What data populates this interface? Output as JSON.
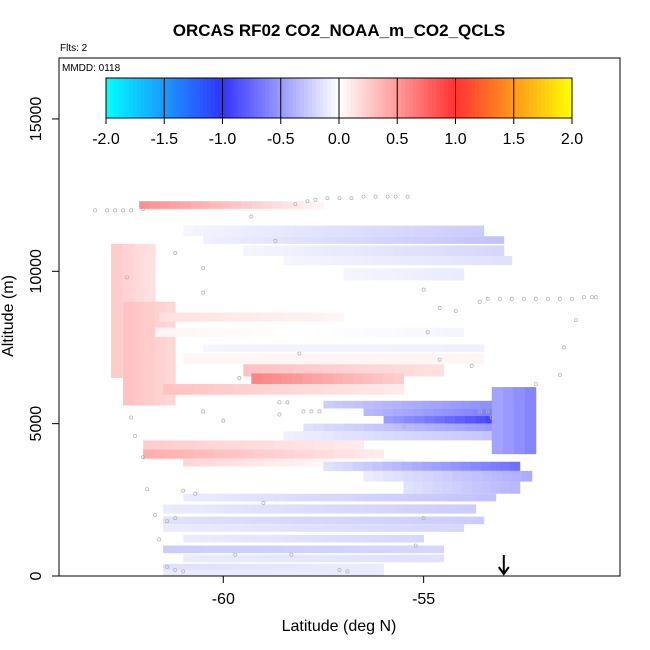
{
  "chart_data": {
    "type": "heatmap",
    "title": "ORCAS RF02 CO2_NOAA_m_CO2_QCLS",
    "subtitle": "Flts: 2",
    "annotation": "MMDD: 0118",
    "xlabel": "Latitude (deg N)",
    "ylabel": "Altitude (m)",
    "xlim": [
      -64.1,
      -50.1
    ],
    "ylim": [
      0,
      17000
    ],
    "xticks": [
      -60,
      -55
    ],
    "xtick_labels": [
      "-60",
      "-55"
    ],
    "yticks": [
      0,
      5000,
      10000,
      15000
    ],
    "ytick_labels": [
      "0",
      "5000",
      "10000",
      "15000"
    ],
    "grid": false,
    "colorbar": {
      "range": [
        -2.0,
        2.0
      ],
      "ticks": [
        -2.0,
        -1.5,
        -1.0,
        -0.5,
        0.0,
        0.5,
        1.0,
        1.5,
        2.0
      ],
      "tick_labels": [
        "-2.0",
        "-1.5",
        "-1.0",
        "-0.5",
        "0.0",
        "0.5",
        "1.0",
        "1.5",
        "2.0"
      ],
      "colors": {
        "-2.0": "#00ffff",
        "-1.0": "#3333ff",
        "0.0": "#ffffff",
        "1.0": "#ff3333",
        "2.0": "#ffff00"
      }
    },
    "arrow_latitude": -53.0,
    "bands": [
      {
        "lat_start": -62.1,
        "lat_end": -57.5,
        "alt_start": 12050,
        "alt_end": 12300,
        "value_start": 0.55,
        "value_end": 0.05
      },
      {
        "lat_start": -61.0,
        "lat_end": -53.5,
        "alt_start": 11150,
        "alt_end": 11500,
        "value_start": -0.05,
        "value_end": -0.25
      },
      {
        "lat_start": -60.5,
        "lat_end": -53.0,
        "alt_start": 10900,
        "alt_end": 11150,
        "value_start": -0.08,
        "value_end": -0.3
      },
      {
        "lat_start": -59.5,
        "lat_end": -53.0,
        "alt_start": 10500,
        "alt_end": 10850,
        "value_start": -0.05,
        "value_end": -0.2
      },
      {
        "lat_start": -58.5,
        "lat_end": -52.8,
        "alt_start": 10200,
        "alt_end": 10500,
        "value_start": -0.05,
        "value_end": -0.15
      },
      {
        "lat_start": -57.0,
        "lat_end": -54.0,
        "alt_start": 9700,
        "alt_end": 10100,
        "value_start": -0.05,
        "value_end": -0.1
      },
      {
        "lat_start": -62.8,
        "lat_end": -61.7,
        "alt_start": 6500,
        "alt_end": 10900,
        "value_start": 0.25,
        "value_end": 0.15
      },
      {
        "lat_start": -62.5,
        "lat_end": -61.2,
        "alt_start": 5600,
        "alt_end": 9000,
        "value_start": 0.3,
        "value_end": 0.2
      },
      {
        "lat_start": -61.6,
        "lat_end": -57.0,
        "alt_start": 8350,
        "alt_end": 8650,
        "value_start": 0.15,
        "value_end": 0.05
      },
      {
        "lat_start": -61.7,
        "lat_end": -54.0,
        "alt_start": 7850,
        "alt_end": 8150,
        "value_start": 0.05,
        "value_end": -0.05
      },
      {
        "lat_start": -60.5,
        "lat_end": -53.5,
        "alt_start": 7350,
        "alt_end": 7600,
        "value_start": -0.05,
        "value_end": -0.08
      },
      {
        "lat_start": -61.0,
        "lat_end": -53.5,
        "alt_start": 6950,
        "alt_end": 7300,
        "value_start": 0.05,
        "value_end": 0.05
      },
      {
        "lat_start": -59.5,
        "lat_end": -54.5,
        "alt_start": 6550,
        "alt_end": 6950,
        "value_start": 0.3,
        "value_end": 0.15
      },
      {
        "lat_start": -59.3,
        "lat_end": -55.5,
        "alt_start": 6300,
        "alt_end": 6650,
        "value_start": 0.6,
        "value_end": 0.25
      },
      {
        "lat_start": -61.5,
        "lat_end": -55.5,
        "alt_start": 5950,
        "alt_end": 6300,
        "value_start": 0.3,
        "value_end": 0.1
      },
      {
        "lat_start": -57.5,
        "lat_end": -52.6,
        "alt_start": 5500,
        "alt_end": 5750,
        "value_start": -0.25,
        "value_end": -0.6
      },
      {
        "lat_start": -56.5,
        "lat_end": -52.5,
        "alt_start": 5250,
        "alt_end": 5500,
        "value_start": -0.35,
        "value_end": -0.7
      },
      {
        "lat_start": -56.0,
        "lat_end": -53.2,
        "alt_start": 5000,
        "alt_end": 5250,
        "value_start": -0.5,
        "value_end": -0.9
      },
      {
        "lat_start": -58.0,
        "lat_end": -53.2,
        "alt_start": 4750,
        "alt_end": 5000,
        "value_start": -0.15,
        "value_end": -0.5
      },
      {
        "lat_start": -58.5,
        "lat_end": -52.8,
        "alt_start": 4450,
        "alt_end": 4750,
        "value_start": -0.08,
        "value_end": -0.3
      },
      {
        "lat_start": -53.3,
        "lat_end": -52.2,
        "alt_start": 4000,
        "alt_end": 6200,
        "value_start": -0.45,
        "value_end": -0.6
      },
      {
        "lat_start": -62.0,
        "lat_end": -56.5,
        "alt_start": 4150,
        "alt_end": 4450,
        "value_start": 0.25,
        "value_end": 0.1
      },
      {
        "lat_start": -62.0,
        "lat_end": -56.0,
        "alt_start": 3850,
        "alt_end": 4150,
        "value_start": 0.4,
        "value_end": 0.1
      },
      {
        "lat_start": -61.0,
        "lat_end": -55.5,
        "alt_start": 3600,
        "alt_end": 3850,
        "value_start": 0.2,
        "value_end": -0.05
      },
      {
        "lat_start": -57.5,
        "lat_end": -52.6,
        "alt_start": 3450,
        "alt_end": 3750,
        "value_start": -0.15,
        "value_end": -0.7
      },
      {
        "lat_start": -56.5,
        "lat_end": -52.3,
        "alt_start": 3100,
        "alt_end": 3450,
        "value_start": -0.1,
        "value_end": -0.4
      },
      {
        "lat_start": -55.5,
        "lat_end": -52.6,
        "alt_start": 2700,
        "alt_end": 3100,
        "value_start": -0.15,
        "value_end": -0.35
      },
      {
        "lat_start": -61.0,
        "lat_end": -53.2,
        "alt_start": 2450,
        "alt_end": 2700,
        "value_start": -0.1,
        "value_end": -0.3
      },
      {
        "lat_start": -61.5,
        "lat_end": -53.7,
        "alt_start": 2050,
        "alt_end": 2350,
        "value_start": -0.1,
        "value_end": -0.25
      },
      {
        "lat_start": -61.5,
        "lat_end": -53.5,
        "alt_start": 1700,
        "alt_end": 1950,
        "value_start": -0.15,
        "value_end": -0.25
      },
      {
        "lat_start": -61.5,
        "lat_end": -54.0,
        "alt_start": 1450,
        "alt_end": 1700,
        "value_start": -0.1,
        "value_end": -0.2
      },
      {
        "lat_start": -61.0,
        "lat_end": -55.0,
        "alt_start": 1100,
        "alt_end": 1350,
        "value_start": -0.1,
        "value_end": -0.2
      },
      {
        "lat_start": -61.5,
        "lat_end": -54.5,
        "alt_start": 750,
        "alt_end": 1000,
        "value_start": -0.25,
        "value_end": -0.2
      },
      {
        "lat_start": -61.0,
        "lat_end": -54.5,
        "alt_start": 450,
        "alt_end": 700,
        "value_start": -0.1,
        "value_end": -0.15
      },
      {
        "lat_start": -61.5,
        "lat_end": -56.0,
        "alt_start": 150,
        "alt_end": 400,
        "value_start": -0.15,
        "value_end": -0.1
      },
      {
        "lat_start": -61.5,
        "lat_end": -56.0,
        "alt_start": 0,
        "alt_end": 200,
        "value_start": -0.1,
        "value_end": -0.1
      }
    ],
    "flight_track": [
      {
        "lat": -63.2,
        "alt": 12000
      },
      {
        "lat": -62.9,
        "alt": 12000
      },
      {
        "lat": -62.7,
        "alt": 12000
      },
      {
        "lat": -62.5,
        "alt": 12000
      },
      {
        "lat": -62.3,
        "alt": 12000
      },
      {
        "lat": -62.0,
        "alt": 12050
      },
      {
        "lat": -58.2,
        "alt": 12200
      },
      {
        "lat": -57.9,
        "alt": 12300
      },
      {
        "lat": -57.7,
        "alt": 12350
      },
      {
        "lat": -57.4,
        "alt": 12400
      },
      {
        "lat": -57.1,
        "alt": 12400
      },
      {
        "lat": -56.8,
        "alt": 12400
      },
      {
        "lat": -56.5,
        "alt": 12450
      },
      {
        "lat": -56.2,
        "alt": 12450
      },
      {
        "lat": -55.9,
        "alt": 12450
      },
      {
        "lat": -55.7,
        "alt": 12450
      },
      {
        "lat": -55.4,
        "alt": 12450
      },
      {
        "lat": -59.3,
        "alt": 11800
      },
      {
        "lat": -58.7,
        "alt": 11000
      },
      {
        "lat": -61.2,
        "alt": 10600
      },
      {
        "lat": -60.5,
        "alt": 10100
      },
      {
        "lat": -62.4,
        "alt": 9800
      },
      {
        "lat": -60.5,
        "alt": 9300
      },
      {
        "lat": -55.0,
        "alt": 9400
      },
      {
        "lat": -54.6,
        "alt": 8800
      },
      {
        "lat": -54.2,
        "alt": 8700
      },
      {
        "lat": -53.6,
        "alt": 9000
      },
      {
        "lat": -53.4,
        "alt": 9100
      },
      {
        "lat": -53.1,
        "alt": 9100
      },
      {
        "lat": -52.8,
        "alt": 9100
      },
      {
        "lat": -52.5,
        "alt": 9100
      },
      {
        "lat": -52.2,
        "alt": 9100
      },
      {
        "lat": -51.9,
        "alt": 9100
      },
      {
        "lat": -51.6,
        "alt": 9100
      },
      {
        "lat": -51.3,
        "alt": 9100
      },
      {
        "lat": -51.0,
        "alt": 9150
      },
      {
        "lat": -50.8,
        "alt": 9150
      },
      {
        "lat": -50.7,
        "alt": 9150
      },
      {
        "lat": -51.2,
        "alt": 8400
      },
      {
        "lat": -54.9,
        "alt": 8000
      },
      {
        "lat": -51.5,
        "alt": 7500
      },
      {
        "lat": -58.1,
        "alt": 7300
      },
      {
        "lat": -54.6,
        "alt": 7100
      },
      {
        "lat": -53.8,
        "alt": 6900
      },
      {
        "lat": -51.6,
        "alt": 6600
      },
      {
        "lat": -59.6,
        "alt": 6500
      },
      {
        "lat": -52.2,
        "alt": 6300
      },
      {
        "lat": -58.6,
        "alt": 5700
      },
      {
        "lat": -58.4,
        "alt": 5700
      },
      {
        "lat": -60.5,
        "alt": 5400
      },
      {
        "lat": -58.6,
        "alt": 5300
      },
      {
        "lat": -58.0,
        "alt": 5400
      },
      {
        "lat": -57.8,
        "alt": 5400
      },
      {
        "lat": -57.6,
        "alt": 5400
      },
      {
        "lat": -53.6,
        "alt": 5400
      },
      {
        "lat": -53.4,
        "alt": 5400
      },
      {
        "lat": -53.3,
        "alt": 5200
      },
      {
        "lat": -60.0,
        "alt": 5100
      },
      {
        "lat": -62.3,
        "alt": 5200
      },
      {
        "lat": -55.5,
        "alt": 4900
      },
      {
        "lat": -62.2,
        "alt": 4600
      },
      {
        "lat": -62.0,
        "alt": 3900
      },
      {
        "lat": -61.9,
        "alt": 2850
      },
      {
        "lat": -61.0,
        "alt": 2800
      },
      {
        "lat": -60.7,
        "alt": 2700
      },
      {
        "lat": -59.0,
        "alt": 2400
      },
      {
        "lat": -61.7,
        "alt": 2000
      },
      {
        "lat": -61.4,
        "alt": 1800
      },
      {
        "lat": -61.2,
        "alt": 1900
      },
      {
        "lat": -55.0,
        "alt": 1900
      },
      {
        "lat": -61.6,
        "alt": 1200
      },
      {
        "lat": -55.2,
        "alt": 1000
      },
      {
        "lat": -59.7,
        "alt": 700
      },
      {
        "lat": -58.3,
        "alt": 700
      },
      {
        "lat": -61.4,
        "alt": 300
      },
      {
        "lat": -61.2,
        "alt": 200
      },
      {
        "lat": -61.0,
        "alt": 150
      },
      {
        "lat": -57.1,
        "alt": 200
      },
      {
        "lat": -56.9,
        "alt": 150
      }
    ]
  }
}
